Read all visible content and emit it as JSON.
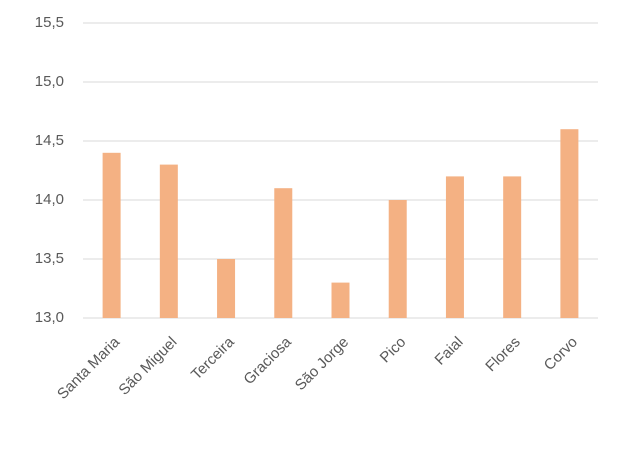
{
  "chart_data": {
    "type": "bar",
    "categories": [
      "Santa Maria",
      "São Miguel",
      "Terceira",
      "Graciosa",
      "São Jorge",
      "Pico",
      "Faial",
      "Flores",
      "Corvo"
    ],
    "values": [
      14.4,
      14.3,
      13.5,
      14.1,
      13.3,
      14.0,
      14.2,
      14.2,
      14.6
    ],
    "color": "#f4b183",
    "ylim": [
      13,
      15.5
    ],
    "yticks": [
      {
        "value": 13,
        "label": "13,0"
      },
      {
        "value": 13.5,
        "label": "13,5"
      },
      {
        "value": 14,
        "label": "14,0"
      },
      {
        "value": 14.5,
        "label": "14,5"
      },
      {
        "value": 15,
        "label": "15,0"
      },
      {
        "value": 15.5,
        "label": "15,5"
      }
    ],
    "grid": true
  }
}
